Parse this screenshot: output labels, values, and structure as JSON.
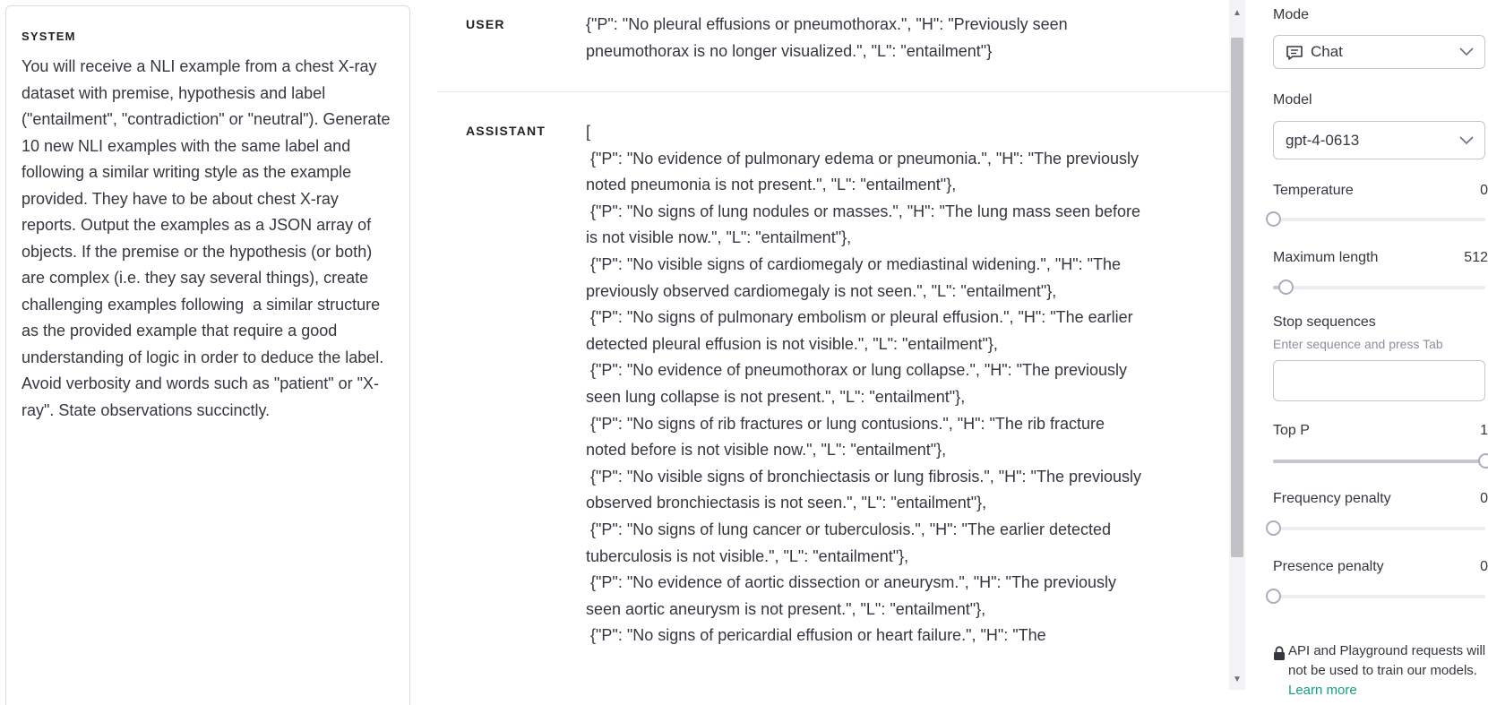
{
  "system": {
    "label": "SYSTEM",
    "text": "You will receive a NLI example from a chest X-ray dataset with premise, hypothesis and label (\"entailment\", \"contradiction\" or \"neutral\"). Generate 10 new NLI examples with the same label and following a similar writing style as the example provided. They have to be about chest X-ray reports. Output the examples as a JSON array of objects. If the premise or the hypothesis (or both) are complex (i.e. they say several things), create challenging examples following  a similar structure as the provided example that require a good understanding of logic in order to deduce the label.\nAvoid verbosity and words such as \"patient\" or \"X-ray\". State observations succinctly."
  },
  "messages": [
    {
      "role": "USER",
      "content": "{\"P\": \"No pleural effusions or pneumothorax.\", \"H\": \"Previously seen pneumothorax is no longer visualized.\", \"L\": \"entailment\"}"
    },
    {
      "role": "ASSISTANT",
      "content": "[\n {\"P\": \"No evidence of pulmonary edema or pneumonia.\", \"H\": \"The previously noted pneumonia is not present.\", \"L\": \"entailment\"},\n {\"P\": \"No signs of lung nodules or masses.\", \"H\": \"The lung mass seen before is not visible now.\", \"L\": \"entailment\"},\n {\"P\": \"No visible signs of cardiomegaly or mediastinal widening.\", \"H\": \"The previously observed cardiomegaly is not seen.\", \"L\": \"entailment\"},\n {\"P\": \"No signs of pulmonary embolism or pleural effusion.\", \"H\": \"The earlier detected pleural effusion is not visible.\", \"L\": \"entailment\"},\n {\"P\": \"No evidence of pneumothorax or lung collapse.\", \"H\": \"The previously seen lung collapse is not present.\", \"L\": \"entailment\"},\n {\"P\": \"No signs of rib fractures or lung contusions.\", \"H\": \"The rib fracture noted before is not visible now.\", \"L\": \"entailment\"},\n {\"P\": \"No visible signs of bronchiectasis or lung fibrosis.\", \"H\": \"The previously observed bronchiectasis is not seen.\", \"L\": \"entailment\"},\n {\"P\": \"No signs of lung cancer or tuberculosis.\", \"H\": \"The earlier detected tuberculosis is not visible.\", \"L\": \"entailment\"},\n {\"P\": \"No evidence of aortic dissection or aneurysm.\", \"H\": \"The previously seen aortic aneurysm is not present.\", \"L\": \"entailment\"},\n {\"P\": \"No signs of pericardial effusion or heart failure.\", \"H\": \"The"
    }
  ],
  "settings": {
    "mode": {
      "label": "Mode",
      "value": "Chat",
      "icon": "chat-bubble-icon"
    },
    "model": {
      "label": "Model",
      "value": "gpt-4-0613"
    },
    "temperature": {
      "label": "Temperature",
      "value": "0",
      "fraction": 0
    },
    "max_length": {
      "label": "Maximum length",
      "value": "512",
      "fraction": 0.06
    },
    "stop_sequences": {
      "label": "Stop sequences",
      "hint": "Enter sequence and press Tab",
      "value": ""
    },
    "top_p": {
      "label": "Top P",
      "value": "1",
      "fraction": 1
    },
    "frequency_penalty": {
      "label": "Frequency penalty",
      "value": "0",
      "fraction": 0
    },
    "presence_penalty": {
      "label": "Presence penalty",
      "value": "0",
      "fraction": 0
    }
  },
  "notice": {
    "text": "API and Playground requests will not be used to train our models.",
    "link_text": "Learn more"
  },
  "colors": {
    "accent": "#10a37f",
    "text": "#353740",
    "border": "#d9d9e3"
  }
}
